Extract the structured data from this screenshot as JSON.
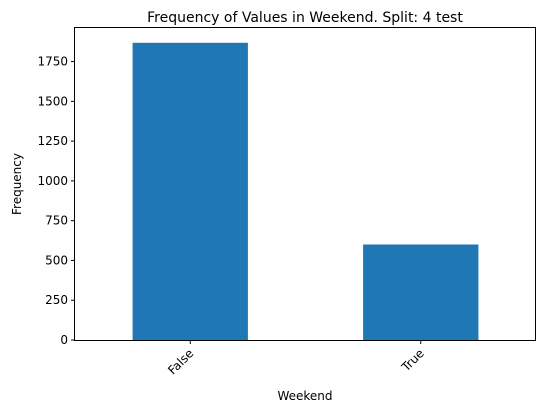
{
  "chart_data": {
    "type": "bar",
    "title": "Frequency of Values in Weekend. Split: 4 test",
    "xlabel": "Weekend",
    "ylabel": "Frequency",
    "categories": [
      "False",
      "True"
    ],
    "values": [
      1868,
      600
    ],
    "ylim": [
      0,
      1961
    ],
    "yticks": [
      "0",
      "250",
      "500",
      "750",
      "1000",
      "1250",
      "1500",
      "1750"
    ],
    "grid": false,
    "bar_color": "#1f77b4"
  }
}
